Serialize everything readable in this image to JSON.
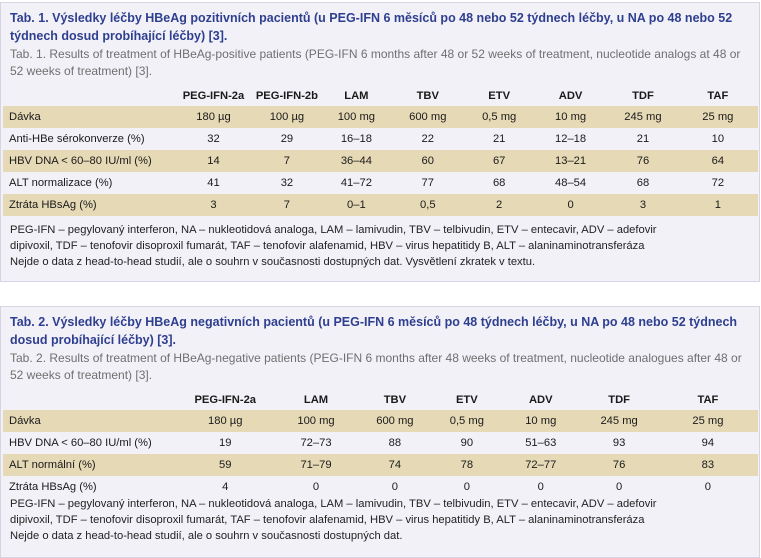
{
  "table1": {
    "title_cs": "Tab. 1. Výsledky léčby HBeAg pozitivních pacientů (u PEG-IFN 6 měsíců po 48 nebo 52 týdnech léčby, u NA po 48 nebo 52 týdnech dosud probíhající léčby) [3].",
    "title_en": "Tab. 1. Results of treatment of HBeAg-positive patients (PEG-IFN 6 months after 48 or 52 weeks of treatment, nucleotide analogs at 48 or 52 weeks of treatment) [3].",
    "columns": [
      "",
      "PEG-IFN-2a",
      "PEG-IFN-2b",
      "LAM",
      "TBV",
      "ETV",
      "ADV",
      "TDF",
      "TAF"
    ],
    "rows": [
      [
        "Dávka",
        "180 µg",
        "100 µg",
        "100 mg",
        "600 mg",
        "0,5 mg",
        "10 mg",
        "245 mg",
        "25 mg"
      ],
      [
        "Anti-HBe sérokonverze (%)",
        "32",
        "29",
        "16–18",
        "22",
        "21",
        "12–18",
        "21",
        "10"
      ],
      [
        "HBV DNA < 60–80 IU/ml (%)",
        "14",
        "7",
        "36–44",
        "60",
        "67",
        "13–21",
        "76",
        "64"
      ],
      [
        "ALT normalizace (%)",
        "41",
        "32",
        "41–72",
        "77",
        "68",
        "48–54",
        "68",
        "72"
      ],
      [
        "Ztráta HBsAg (%)",
        "3",
        "7",
        "0–1",
        "0,5",
        "2",
        "0",
        "3",
        "1"
      ]
    ],
    "notes": [
      "PEG-IFN – pegylovaný interferon, NA – nukleotidová analoga, LAM – lamivudin, TBV – telbivudin, ETV – entecavir, ADV – adefovir",
      "dipivoxil, TDF – tenofovir disoproxil fumarát, TAF – tenofovir alafenamid, HBV – virus hepatitidy B, ALT – alaninaminotransferáza",
      "Nejde o data z head-to-head studií, ale o souhrn v současnosti dostupných dat. Vysvětlení zkratek v textu."
    ]
  },
  "table2": {
    "title_cs": "Tab. 2. Výsledky léčby HBeAg negativních pacientů (u PEG-IFN 6 měsíců po 48 týdnech léčby, u NA po 48 nebo 52 týdnech dosud probíhající léčby) [3].",
    "title_en": "Tab. 2. Results of treatment of HBeAg-negative patients (PEG-IFN 6 months after 48 weeks of treatment, nucleotide analogues after 48 or 52 weeks of treatment) [3].",
    "columns": [
      "",
      "PEG-IFN-2a",
      "LAM",
      "TBV",
      "ETV",
      "ADV",
      "TDF",
      "TAF"
    ],
    "rows": [
      [
        "Dávka",
        "180 µg",
        "100 mg",
        "600 mg",
        "0,5 mg",
        "10 mg",
        "245 mg",
        "25 mg"
      ],
      [
        "HBV DNA < 60–80 IU/ml (%)",
        "19",
        "72–73",
        "88",
        "90",
        "51–63",
        "93",
        "94"
      ],
      [
        "ALT normální (%)",
        "59",
        "71–79",
        "74",
        "78",
        "72–77",
        "76",
        "83"
      ],
      [
        "Ztráta HBsAg (%)",
        "4",
        "0",
        "0",
        "0",
        "0",
        "0",
        "0"
      ]
    ],
    "notes": [
      "PEG-IFN – pegylovaný interferon, NA – nukleotidová analoga, LAM – lamivudin, TBV – telbivudin, ETV – entecavir, ADV – adefovir",
      "dipivoxil, TDF – tenofovir disoproxil fumarát, TAF – tenofovir alafenamid, HBV – virus hepatitidy B, ALT – alaninaminotransferáza",
      "Nejde o data z head-to-head studií, ale o souhrn v současnosti dostupných dat."
    ]
  }
}
